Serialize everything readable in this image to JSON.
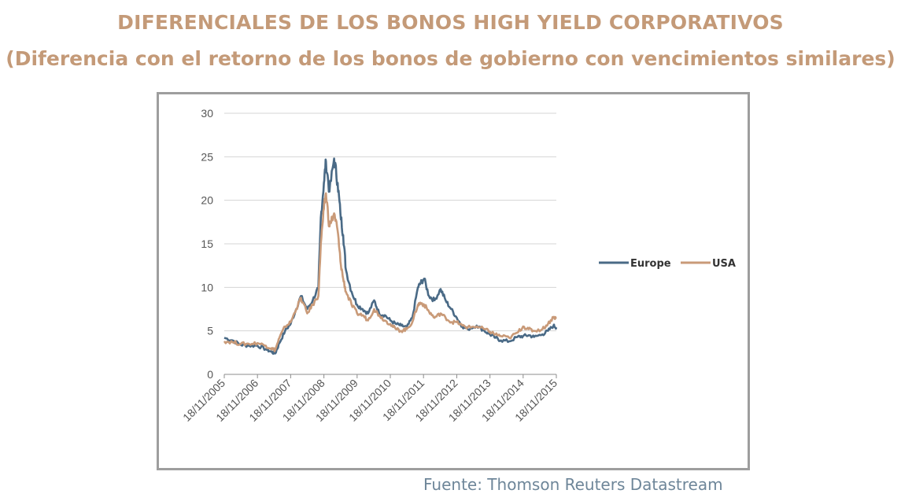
{
  "title": "DIFERENCIALES DE LOS BONOS HIGH YIELD CORPORATIVOS",
  "subtitle": "(Diferencia con el retorno de los bonos de gobierno con vencimientos similares)",
  "source": "Fuente: Thomson Reuters Datastream",
  "colors": {
    "title": "#c49a78",
    "europe": "#4a6a86",
    "usa": "#c99a78",
    "source": "#6e8699"
  },
  "chart_data": {
    "type": "line",
    "title": "",
    "xlabel": "",
    "ylabel": "",
    "ylim": [
      0,
      30
    ],
    "yticks": [
      0,
      5,
      10,
      15,
      20,
      25,
      30
    ],
    "xlim": [
      "2005-11-18",
      "2015-11-18"
    ],
    "xticks": [
      "18/11/2005",
      "18/11/2006",
      "18/11/2007",
      "18/11/2008",
      "18/11/2009",
      "18/11/2010",
      "18/11/2011",
      "18/11/2012",
      "18/11/2013",
      "18/11/2014",
      "18/11/2015"
    ],
    "grid": true,
    "legend": "right",
    "series": [
      {
        "name": "Europe",
        "color": "#4a6a86",
        "points": [
          [
            "2005-11-18",
            4.2
          ],
          [
            "2006-02-18",
            3.9
          ],
          [
            "2006-05-18",
            3.4
          ],
          [
            "2006-08-18",
            3.3
          ],
          [
            "2006-11-18",
            3.3
          ],
          [
            "2007-02-18",
            2.9
          ],
          [
            "2007-04-18",
            2.6
          ],
          [
            "2007-06-01",
            2.4
          ],
          [
            "2007-07-18",
            3.6
          ],
          [
            "2007-09-18",
            5.0
          ],
          [
            "2007-11-18",
            5.8
          ],
          [
            "2008-01-18",
            7.5
          ],
          [
            "2008-03-10",
            9.0
          ],
          [
            "2008-05-18",
            7.5
          ],
          [
            "2008-07-18",
            8.5
          ],
          [
            "2008-09-18",
            10.0
          ],
          [
            "2008-10-15",
            18.0
          ],
          [
            "2008-11-18",
            22.0
          ],
          [
            "2008-12-10",
            24.5
          ],
          [
            "2009-01-18",
            21.0
          ],
          [
            "2009-03-10",
            24.8
          ],
          [
            "2009-04-18",
            22.0
          ],
          [
            "2009-05-18",
            18.5
          ],
          [
            "2009-06-18",
            16.0
          ],
          [
            "2009-07-18",
            12.0
          ],
          [
            "2009-09-18",
            9.5
          ],
          [
            "2009-11-18",
            8.0
          ],
          [
            "2010-01-18",
            7.5
          ],
          [
            "2010-03-18",
            7.0
          ],
          [
            "2010-05-25",
            8.5
          ],
          [
            "2010-07-18",
            7.0
          ],
          [
            "2010-09-18",
            6.8
          ],
          [
            "2010-11-18",
            6.2
          ],
          [
            "2011-01-18",
            5.8
          ],
          [
            "2011-03-18",
            5.6
          ],
          [
            "2011-05-18",
            5.4
          ],
          [
            "2011-07-18",
            6.5
          ],
          [
            "2011-09-18",
            10.0
          ],
          [
            "2011-10-18",
            10.5
          ],
          [
            "2011-11-25",
            11.0
          ],
          [
            "2012-01-18",
            9.0
          ],
          [
            "2012-03-18",
            8.5
          ],
          [
            "2012-05-25",
            9.8
          ],
          [
            "2012-07-18",
            8.5
          ],
          [
            "2012-09-18",
            7.5
          ],
          [
            "2012-11-18",
            6.5
          ],
          [
            "2013-01-18",
            5.5
          ],
          [
            "2013-03-18",
            5.2
          ],
          [
            "2013-06-25",
            5.6
          ],
          [
            "2013-09-18",
            5.0
          ],
          [
            "2013-11-18",
            4.6
          ],
          [
            "2014-01-18",
            4.2
          ],
          [
            "2014-03-18",
            3.9
          ],
          [
            "2014-06-18",
            3.8
          ],
          [
            "2014-09-18",
            4.3
          ],
          [
            "2014-11-18",
            4.4
          ],
          [
            "2015-01-18",
            4.5
          ],
          [
            "2015-03-18",
            4.3
          ],
          [
            "2015-06-18",
            4.6
          ],
          [
            "2015-08-18",
            5.0
          ],
          [
            "2015-10-18",
            5.6
          ],
          [
            "2015-11-18",
            5.4
          ]
        ]
      },
      {
        "name": "USA",
        "color": "#c99a78",
        "points": [
          [
            "2005-11-18",
            3.8
          ],
          [
            "2006-02-18",
            3.7
          ],
          [
            "2006-05-18",
            3.5
          ],
          [
            "2006-08-18",
            3.5
          ],
          [
            "2006-11-18",
            3.6
          ],
          [
            "2007-02-18",
            3.3
          ],
          [
            "2007-04-18",
            3.0
          ],
          [
            "2007-06-01",
            2.8
          ],
          [
            "2007-07-18",
            4.2
          ],
          [
            "2007-09-18",
            5.5
          ],
          [
            "2007-11-18",
            6.0
          ],
          [
            "2008-01-18",
            7.5
          ],
          [
            "2008-03-10",
            8.8
          ],
          [
            "2008-05-18",
            7.0
          ],
          [
            "2008-07-18",
            8.0
          ],
          [
            "2008-09-18",
            9.0
          ],
          [
            "2008-10-15",
            15.0
          ],
          [
            "2008-11-18",
            19.0
          ],
          [
            "2008-12-10",
            20.8
          ],
          [
            "2009-01-18",
            17.0
          ],
          [
            "2009-03-10",
            18.5
          ],
          [
            "2009-04-18",
            16.5
          ],
          [
            "2009-05-18",
            13.0
          ],
          [
            "2009-06-18",
            11.0
          ],
          [
            "2009-07-18",
            9.5
          ],
          [
            "2009-09-18",
            8.0
          ],
          [
            "2009-11-18",
            7.0
          ],
          [
            "2010-01-18",
            6.8
          ],
          [
            "2010-03-18",
            6.2
          ],
          [
            "2010-05-25",
            7.5
          ],
          [
            "2010-07-18",
            6.8
          ],
          [
            "2010-09-18",
            6.2
          ],
          [
            "2010-11-18",
            5.8
          ],
          [
            "2011-01-18",
            5.2
          ],
          [
            "2011-03-18",
            5.0
          ],
          [
            "2011-05-18",
            5.2
          ],
          [
            "2011-07-18",
            6.0
          ],
          [
            "2011-09-18",
            8.0
          ],
          [
            "2011-10-18",
            8.2
          ],
          [
            "2011-11-25",
            8.0
          ],
          [
            "2012-01-18",
            7.2
          ],
          [
            "2012-03-18",
            6.5
          ],
          [
            "2012-05-25",
            7.0
          ],
          [
            "2012-07-18",
            6.5
          ],
          [
            "2012-09-18",
            6.0
          ],
          [
            "2012-11-18",
            6.0
          ],
          [
            "2013-01-18",
            5.6
          ],
          [
            "2013-03-18",
            5.4
          ],
          [
            "2013-06-25",
            5.5
          ],
          [
            "2013-09-18",
            5.2
          ],
          [
            "2013-11-18",
            4.9
          ],
          [
            "2014-01-18",
            4.6
          ],
          [
            "2014-03-18",
            4.4
          ],
          [
            "2014-06-18",
            4.2
          ],
          [
            "2014-09-18",
            4.8
          ],
          [
            "2014-11-18",
            5.5
          ],
          [
            "2015-01-18",
            5.2
          ],
          [
            "2015-03-18",
            5.0
          ],
          [
            "2015-06-18",
            5.2
          ],
          [
            "2015-08-18",
            5.8
          ],
          [
            "2015-10-18",
            6.6
          ],
          [
            "2015-11-18",
            6.4
          ]
        ]
      }
    ]
  }
}
